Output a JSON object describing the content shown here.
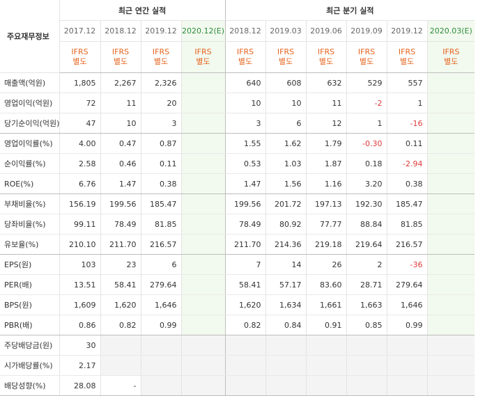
{
  "header": {
    "row_title": "주요재무정보",
    "annual_title": "최근 연간 실적",
    "quarter_title": "최근 분기 실적",
    "annual_periods": [
      "2017.12",
      "2018.12",
      "2019.12",
      "2020.12(E)"
    ],
    "quarter_periods": [
      "2018.12",
      "2019.03",
      "2019.06",
      "2019.09",
      "2019.12",
      "2020.03(E)"
    ],
    "ifrs_line1": "IFRS",
    "ifrs_line2": "별도"
  },
  "rows": [
    {
      "label": "매출액(억원)",
      "annual": [
        "1,805",
        "2,267",
        "2,326",
        ""
      ],
      "quarter": [
        "640",
        "608",
        "632",
        "529",
        "557",
        ""
      ]
    },
    {
      "label": "영업이익(억원)",
      "annual": [
        "72",
        "11",
        "20",
        ""
      ],
      "quarter": [
        "10",
        "10",
        "11",
        "-2",
        "1",
        ""
      ]
    },
    {
      "label": "당기순이익(억원)",
      "annual": [
        "47",
        "10",
        "3",
        ""
      ],
      "quarter": [
        "3",
        "6",
        "12",
        "1",
        "-16",
        ""
      ]
    },
    {
      "label": "영업이익률(%)",
      "annual": [
        "4.00",
        "0.47",
        "0.87",
        ""
      ],
      "quarter": [
        "1.55",
        "1.62",
        "1.79",
        "-0.30",
        "0.11",
        ""
      ]
    },
    {
      "label": "순이익률(%)",
      "annual": [
        "2.58",
        "0.46",
        "0.11",
        ""
      ],
      "quarter": [
        "0.53",
        "1.03",
        "1.87",
        "0.18",
        "-2.94",
        ""
      ]
    },
    {
      "label": "ROE(%)",
      "annual": [
        "6.76",
        "1.47",
        "0.38",
        ""
      ],
      "quarter": [
        "1.47",
        "1.56",
        "1.16",
        "3.20",
        "0.38",
        ""
      ]
    },
    {
      "label": "부채비율(%)",
      "annual": [
        "156.19",
        "199.56",
        "185.47",
        ""
      ],
      "quarter": [
        "199.56",
        "201.72",
        "197.13",
        "192.30",
        "185.47",
        ""
      ]
    },
    {
      "label": "당좌비율(%)",
      "annual": [
        "99.11",
        "78.49",
        "81.85",
        ""
      ],
      "quarter": [
        "78.49",
        "80.92",
        "77.77",
        "88.84",
        "81.85",
        ""
      ]
    },
    {
      "label": "유보율(%)",
      "annual": [
        "210.10",
        "211.70",
        "216.57",
        ""
      ],
      "quarter": [
        "211.70",
        "214.36",
        "219.18",
        "219.64",
        "216.57",
        ""
      ]
    },
    {
      "label": "EPS(원)",
      "annual": [
        "103",
        "23",
        "6",
        ""
      ],
      "quarter": [
        "7",
        "14",
        "26",
        "2",
        "-36",
        ""
      ]
    },
    {
      "label": "PER(배)",
      "annual": [
        "13.51",
        "58.41",
        "279.64",
        ""
      ],
      "quarter": [
        "58.41",
        "57.17",
        "83.60",
        "28.71",
        "279.64",
        ""
      ]
    },
    {
      "label": "BPS(원)",
      "annual": [
        "1,609",
        "1,620",
        "1,646",
        ""
      ],
      "quarter": [
        "1,620",
        "1,634",
        "1,661",
        "1,663",
        "1,646",
        ""
      ]
    },
    {
      "label": "PBR(배)",
      "annual": [
        "0.86",
        "0.82",
        "0.99",
        ""
      ],
      "quarter": [
        "0.82",
        "0.84",
        "0.91",
        "0.85",
        "0.99",
        ""
      ]
    },
    {
      "label": "주당배당금(원)",
      "annual": [
        "30",
        "",
        "",
        ""
      ],
      "quarter": [
        "",
        "",
        "",
        "",
        "",
        ""
      ]
    },
    {
      "label": "시가배당률(%)",
      "annual": [
        "2.17",
        "",
        "",
        ""
      ],
      "quarter": [
        "",
        "",
        "",
        "",
        "",
        ""
      ]
    },
    {
      "label": "배당성향(%)",
      "annual": [
        "28.08",
        "-",
        "",
        ""
      ],
      "quarter": [
        "",
        "",
        "",
        "",
        "",
        ""
      ]
    }
  ],
  "colors": {
    "ifrs": "#e5641d",
    "negative": "#e03a3a",
    "estimate_bg": "#f2f9ee",
    "estimate_text": "#2d8c3c"
  }
}
